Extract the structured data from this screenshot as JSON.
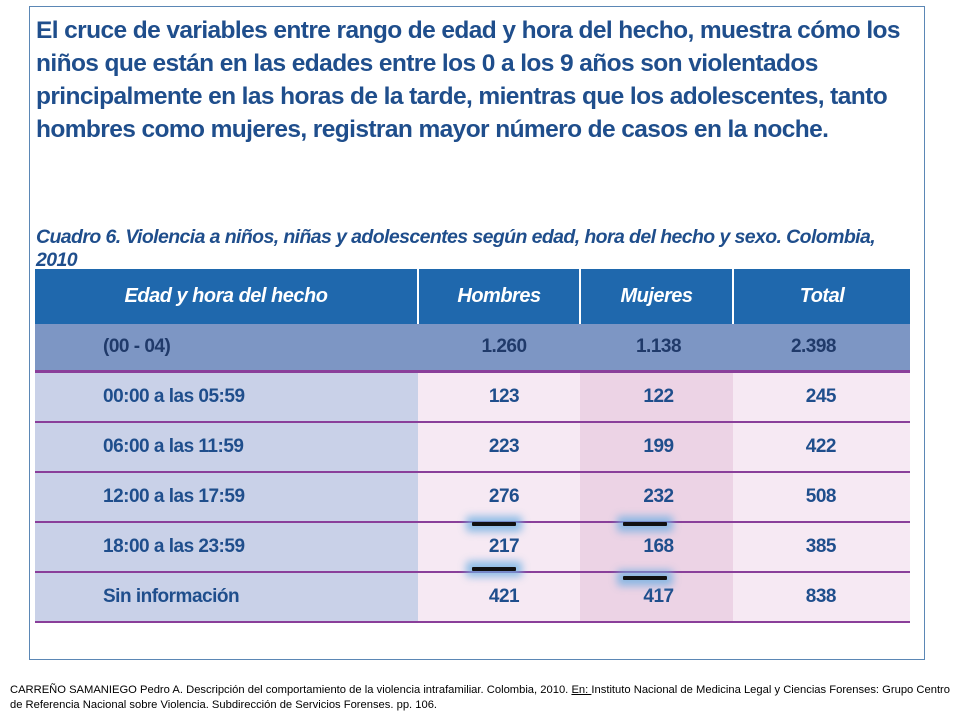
{
  "intro_text": "El cruce de variables entre rango de edad y hora del hecho, muestra cómo los niños que están en las edades entre los 0 a los 9 años son violentados principalmente en las horas de la tarde, mientras que los adolescentes, tanto hombres como mujeres, registran mayor número de casos en la noche.",
  "table_caption": "Cuadro 6. Violencia a niños, niñas y adolescentes según edad, hora del hecho y sexo. Colombia, 2010",
  "table": {
    "headers": [
      "Edad y hora del hecho",
      "Hombres",
      "Mujeres",
      "Total"
    ],
    "subtotal": {
      "label": "(00 - 04)",
      "hombres": "1.260",
      "mujeres": "1.138",
      "total": "2.398"
    },
    "rows": [
      {
        "label": "00:00 a las 05:59",
        "hombres": "123",
        "mujeres": "122",
        "total": "245"
      },
      {
        "label": "06:00 a las 11:59",
        "hombres": "223",
        "mujeres": "199",
        "total": "422"
      },
      {
        "label": "12:00 a las 17:59",
        "hombres": "276",
        "mujeres": "232",
        "total": "508"
      },
      {
        "label": "18:00 a las 23:59",
        "hombres": "217",
        "mujeres": "168",
        "total": "385"
      },
      {
        "label": "Sin información",
        "hombres": "421",
        "mujeres": "417",
        "total": "838"
      }
    ]
  },
  "citation": {
    "part1": "CARREÑO SAMANIEGO Pedro A. Descripción del comportamiento de la violencia intrafamiliar. Colombia,  2010. ",
    "underlined": "En: ",
    "part2": "Instituto Nacional de Medicina Legal y Ciencias Forenses: Grupo Centro de Referencia Nacional sobre Violencia. Subdirección de Servicios Forenses. pp. 106."
  },
  "colors": {
    "title_blue": "#1f4e8c",
    "header_blue": "#1f68ad",
    "subtotal_blue": "#7d96c4",
    "row_separator_purple": "#8a3f9a",
    "marker_glow": "#6eafe1"
  }
}
